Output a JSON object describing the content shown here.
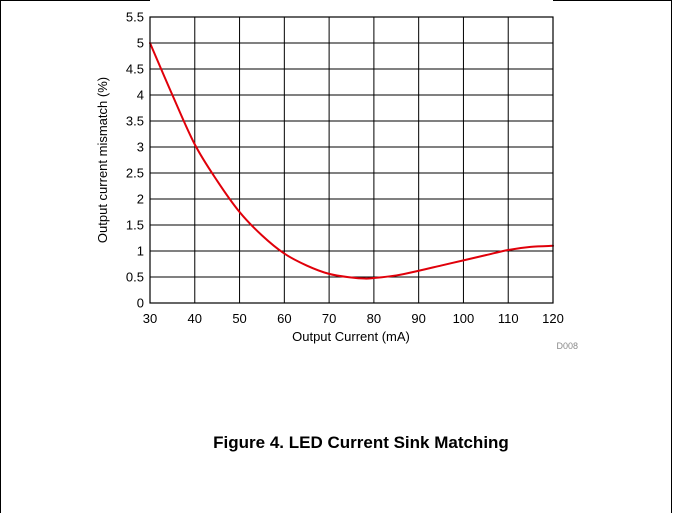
{
  "figure": {
    "caption": "Figure 4. LED Current Sink Matching",
    "code": "D008"
  },
  "chart_data": {
    "type": "line",
    "xlabel": "Output Current (mA)",
    "ylabel": "Output current mismatch (%)",
    "xlim": [
      30,
      120
    ],
    "ylim": [
      0,
      5.5
    ],
    "xticks": [
      "30",
      "40",
      "50",
      "60",
      "70",
      "80",
      "90",
      "100",
      "110",
      "120"
    ],
    "yticks": [
      "0",
      "0.5",
      "1",
      "1.5",
      "2",
      "2.5",
      "3",
      "3.5",
      "4",
      "4.5",
      "5",
      "5.5"
    ],
    "grid": true,
    "series": [
      {
        "color": "#e0000a",
        "x": [
          30,
          35,
          40,
          45,
          50,
          55,
          60,
          65,
          70,
          75,
          78,
          80,
          85,
          90,
          95,
          100,
          105,
          110,
          115,
          120
        ],
        "y": [
          5.0,
          4.0,
          3.05,
          2.35,
          1.75,
          1.3,
          0.95,
          0.72,
          0.56,
          0.49,
          0.47,
          0.48,
          0.53,
          0.62,
          0.72,
          0.82,
          0.92,
          1.02,
          1.08,
          1.1
        ]
      }
    ]
  }
}
